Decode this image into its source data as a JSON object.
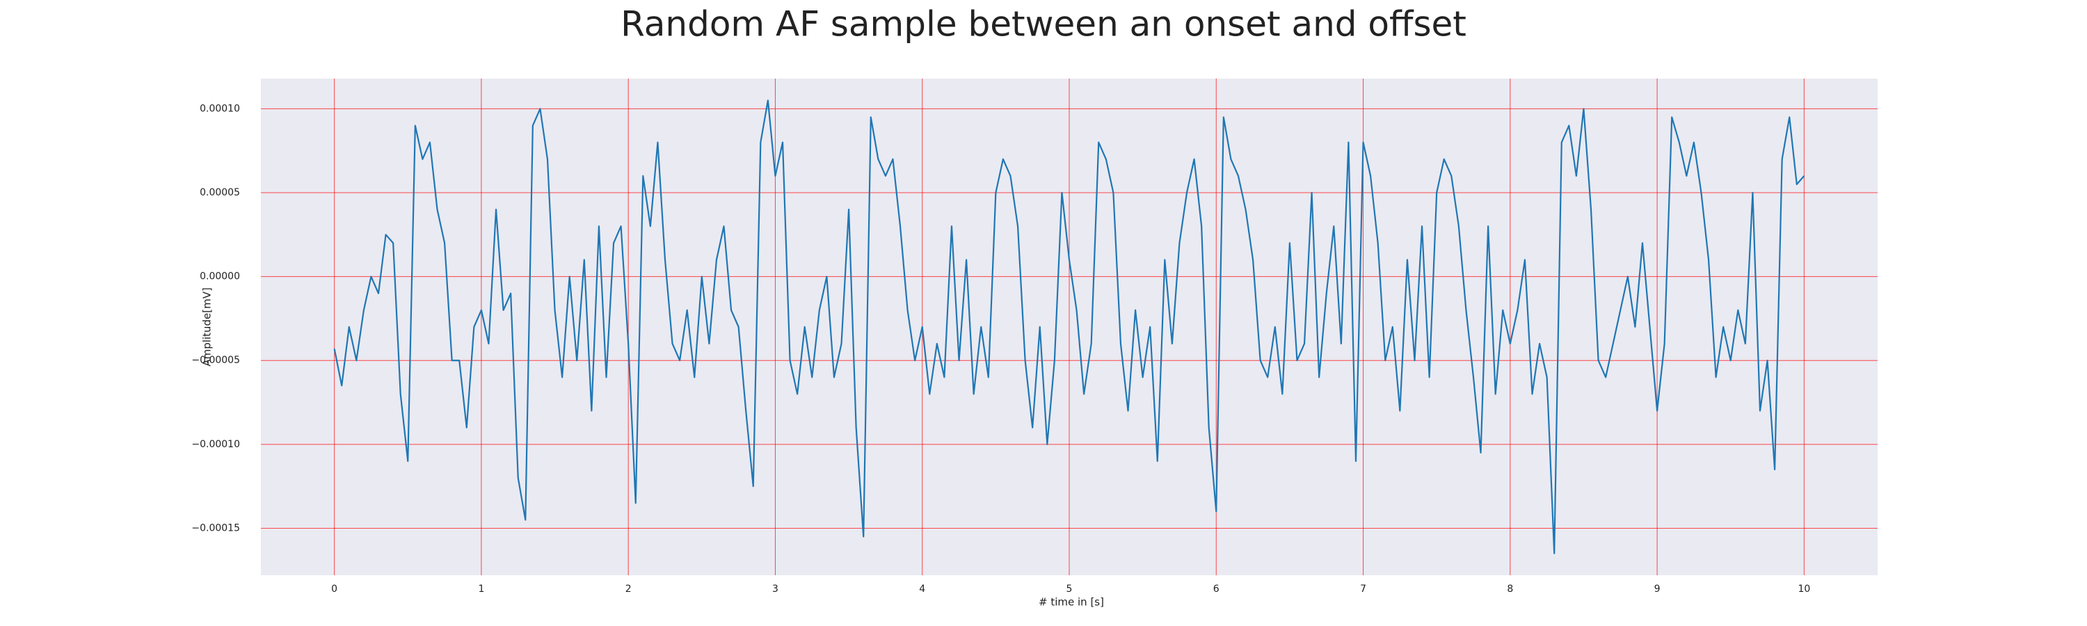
{
  "chart_data": {
    "type": "line",
    "title": "Random AF sample between an onset and offset",
    "xlabel": "# time in [s]",
    "ylabel": "Amplitude[mV]",
    "grid": true,
    "grid_color": "#ff0000",
    "background": "#eaeaf2",
    "xlim": [
      -0.5,
      10.5
    ],
    "ylim": [
      -0.000178,
      0.000118
    ],
    "xticks": [
      0,
      1,
      2,
      3,
      4,
      5,
      6,
      7,
      8,
      9,
      10
    ],
    "yticks": [
      {
        "value": 0.0001,
        "label": "0.00010"
      },
      {
        "value": 5e-05,
        "label": "0.00005"
      },
      {
        "value": 0,
        "label": "0.00000"
      },
      {
        "value": -5e-05,
        "label": "−0.00005"
      },
      {
        "value": -0.0001,
        "label": "−0.00010"
      },
      {
        "value": -0.00015,
        "label": "−0.00015"
      }
    ],
    "x": [
      0,
      0.05,
      0.1,
      0.15,
      0.2,
      0.25,
      0.3,
      0.35,
      0.4,
      0.45,
      0.5,
      0.55,
      0.6,
      0.65,
      0.7,
      0.75,
      0.8,
      0.85,
      0.9,
      0.95,
      1,
      1.05,
      1.1,
      1.15,
      1.2,
      1.25,
      1.3,
      1.35,
      1.4,
      1.45,
      1.5,
      1.55,
      1.6,
      1.65,
      1.7,
      1.75,
      1.8,
      1.85,
      1.9,
      1.95,
      2,
      2.05,
      2.1,
      2.15,
      2.2,
      2.25,
      2.3,
      2.35,
      2.4,
      2.45,
      2.5,
      2.55,
      2.6,
      2.65,
      2.7,
      2.75,
      2.8,
      2.85,
      2.9,
      2.95,
      3,
      3.05,
      3.1,
      3.15,
      3.2,
      3.25,
      3.3,
      3.35,
      3.4,
      3.45,
      3.5,
      3.55,
      3.6,
      3.65,
      3.7,
      3.75,
      3.8,
      3.85,
      3.9,
      3.95,
      4,
      4.05,
      4.1,
      4.15,
      4.2,
      4.25,
      4.3,
      4.35,
      4.4,
      4.45,
      4.5,
      4.55,
      4.6,
      4.65,
      4.7,
      4.75,
      4.8,
      4.85,
      4.9,
      4.95,
      5,
      5.05,
      5.1,
      5.15,
      5.2,
      5.25,
      5.3,
      5.35,
      5.4,
      5.45,
      5.5,
      5.55,
      5.6,
      5.65,
      5.7,
      5.75,
      5.8,
      5.85,
      5.9,
      5.95,
      6,
      6.05,
      6.1,
      6.15,
      6.2,
      6.25,
      6.3,
      6.35,
      6.4,
      6.45,
      6.5,
      6.55,
      6.6,
      6.65,
      6.7,
      6.75,
      6.8,
      6.85,
      6.9,
      6.95,
      7,
      7.05,
      7.1,
      7.15,
      7.2,
      7.25,
      7.3,
      7.35,
      7.4,
      7.45,
      7.5,
      7.55,
      7.6,
      7.65,
      7.7,
      7.75,
      7.8,
      7.85,
      7.9,
      7.95,
      8,
      8.05,
      8.1,
      8.15,
      8.2,
      8.25,
      8.3,
      8.35,
      8.4,
      8.45,
      8.5,
      8.55,
      8.6,
      8.65,
      8.7,
      8.75,
      8.8,
      8.85,
      8.9,
      8.95,
      9,
      9.05,
      9.1,
      9.15,
      9.2,
      9.25,
      9.3,
      9.35,
      9.4,
      9.45,
      9.5,
      9.55,
      9.6,
      9.65,
      9.7,
      9.75,
      9.8,
      9.85,
      9.9,
      9.95,
      10
    ],
    "series": [
      {
        "color": "#1f77b4",
        "values": [
          -4.3e-05,
          -6.5e-05,
          -3e-05,
          -5e-05,
          -2e-05,
          0,
          -1e-05,
          2.5e-05,
          2e-05,
          -7e-05,
          -0.00011,
          9e-05,
          7e-05,
          8e-05,
          4e-05,
          2e-05,
          -5e-05,
          -5e-05,
          -9e-05,
          -3e-05,
          -2e-05,
          -4e-05,
          4e-05,
          -2e-05,
          -1e-05,
          -0.00012,
          -0.000145,
          9e-05,
          0.0001,
          7e-05,
          -2e-05,
          -6e-05,
          0,
          -5e-05,
          1e-05,
          -8e-05,
          3e-05,
          -6e-05,
          2e-05,
          3e-05,
          -4e-05,
          -0.000135,
          6e-05,
          3e-05,
          8e-05,
          1e-05,
          -4e-05,
          -5e-05,
          -2e-05,
          -6e-05,
          0,
          -4e-05,
          1e-05,
          3e-05,
          -2e-05,
          -3e-05,
          -8e-05,
          -0.000125,
          8e-05,
          0.000105,
          6e-05,
          8e-05,
          -5e-05,
          -7e-05,
          -3e-05,
          -6e-05,
          -2e-05,
          0,
          -6e-05,
          -4e-05,
          4e-05,
          -9e-05,
          -0.000155,
          9.5e-05,
          7e-05,
          6e-05,
          7e-05,
          3e-05,
          -2e-05,
          -5e-05,
          -3e-05,
          -7e-05,
          -4e-05,
          -6e-05,
          3e-05,
          -5e-05,
          1e-05,
          -7e-05,
          -3e-05,
          -6e-05,
          5e-05,
          7e-05,
          6e-05,
          3e-05,
          -5e-05,
          -9e-05,
          -3e-05,
          -0.0001,
          -5e-05,
          5e-05,
          1e-05,
          -2e-05,
          -7e-05,
          -4e-05,
          8e-05,
          7e-05,
          5e-05,
          -4e-05,
          -8e-05,
          -2e-05,
          -6e-05,
          -3e-05,
          -0.00011,
          1e-05,
          -4e-05,
          2e-05,
          5e-05,
          7e-05,
          3e-05,
          -9e-05,
          -0.00014,
          9.5e-05,
          7e-05,
          6e-05,
          4e-05,
          1e-05,
          -5e-05,
          -6e-05,
          -3e-05,
          -7e-05,
          2e-05,
          -5e-05,
          -4e-05,
          5e-05,
          -6e-05,
          -1e-05,
          3e-05,
          -4e-05,
          8e-05,
          -0.00011,
          8e-05,
          6e-05,
          2e-05,
          -5e-05,
          -3e-05,
          -8e-05,
          1e-05,
          -5e-05,
          3e-05,
          -6e-05,
          5e-05,
          7e-05,
          6e-05,
          3e-05,
          -2e-05,
          -6e-05,
          -0.000105,
          3e-05,
          -7e-05,
          -2e-05,
          -4e-05,
          -2e-05,
          1e-05,
          -7e-05,
          -4e-05,
          -6e-05,
          -0.000165,
          8e-05,
          9e-05,
          6e-05,
          0.0001,
          4e-05,
          -5e-05,
          -6e-05,
          -4e-05,
          -2e-05,
          0,
          -3e-05,
          2e-05,
          -3e-05,
          -8e-05,
          -4e-05,
          9.5e-05,
          8e-05,
          6e-05,
          8e-05,
          5e-05,
          1e-05,
          -6e-05,
          -3e-05,
          -5e-05,
          -2e-05,
          -4e-05,
          5e-05,
          -8e-05,
          -5e-05,
          -0.000115,
          7e-05,
          9.5e-05,
          5.5e-05,
          6e-05
        ]
      }
    ]
  }
}
